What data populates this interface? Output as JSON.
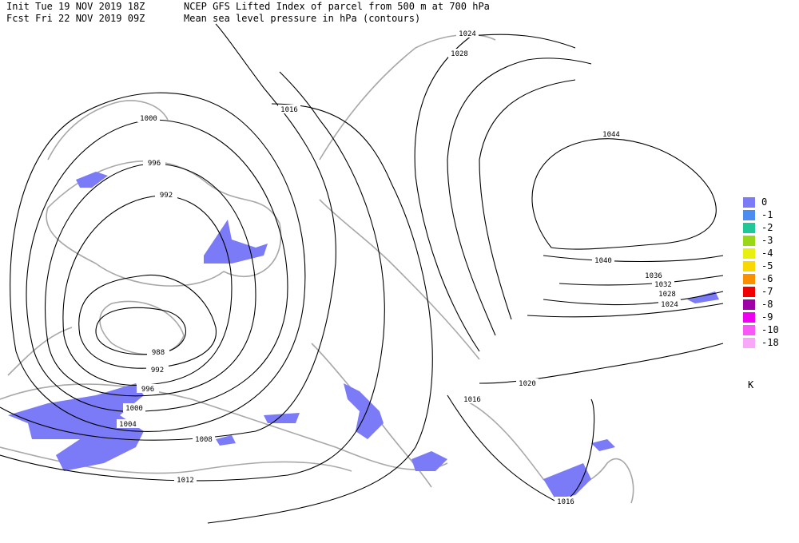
{
  "header": {
    "init": "Init  Tue 19 NOV 2019 18Z",
    "forecast": "Fcst Fri 22 NOV 2019 09Z",
    "title": "NCEP GFS Lifted Index of parcel from 500 m at 700 hPa",
    "subtitle": "Mean sea level pressure in hPa (contours)"
  },
  "contour_labels": [
    "1024",
    "1028",
    "1016",
    "1000",
    "996",
    "992",
    "1044",
    "1040",
    "1036",
    "1032",
    "1028",
    "1024",
    "988",
    "992",
    "996",
    "1000",
    "1004",
    "1008",
    "1012",
    "1020",
    "1016",
    "1016"
  ],
  "legend": {
    "items": [
      {
        "label": "0",
        "color": "#7b7bf7"
      },
      {
        "label": "-1",
        "color": "#4a8cf0"
      },
      {
        "label": "-2",
        "color": "#20c898"
      },
      {
        "label": "-3",
        "color": "#98d818"
      },
      {
        "label": "-4",
        "color": "#e8f010"
      },
      {
        "label": "-5",
        "color": "#f8d800"
      },
      {
        "label": "-6",
        "color": "#f89000"
      },
      {
        "label": "-7",
        "color": "#f00000"
      },
      {
        "label": "-8",
        "color": "#a000a8"
      },
      {
        "label": "-9",
        "color": "#f000f0"
      },
      {
        "label": "-10",
        "color": "#f858f8"
      },
      {
        "label": "-18",
        "color": "#f8a8f8"
      }
    ],
    "unit": "K"
  }
}
